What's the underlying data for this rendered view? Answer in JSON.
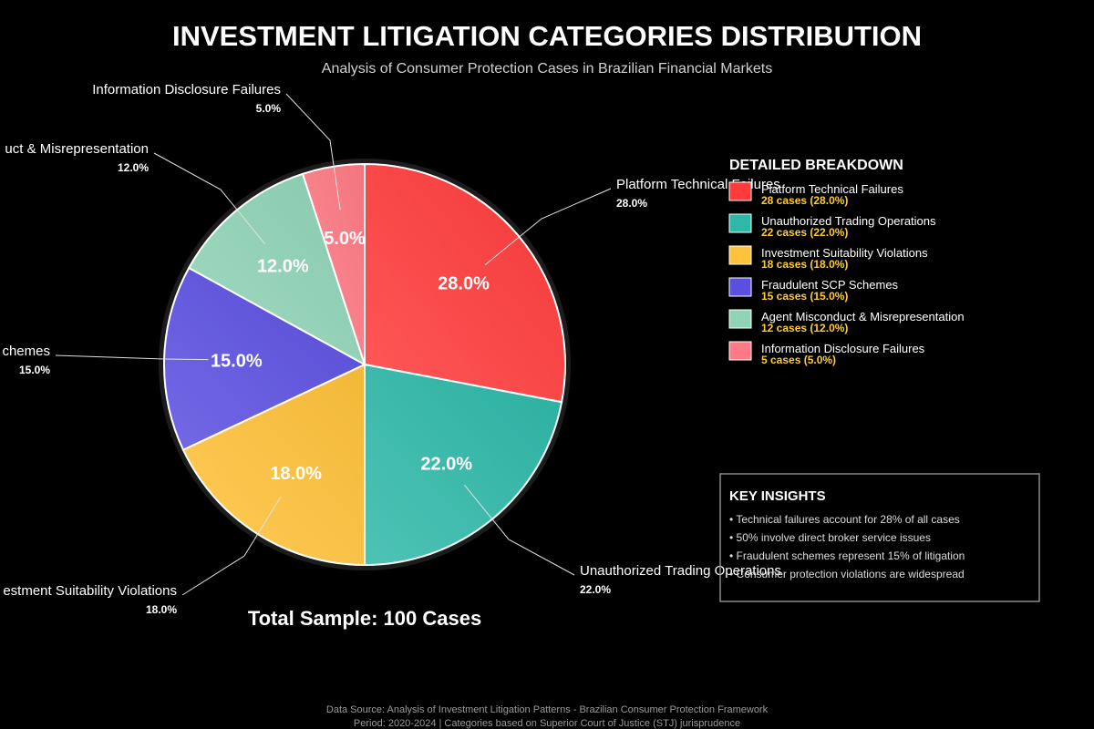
{
  "chart_data": {
    "type": "pie",
    "title": "INVESTMENT LITIGATION CATEGORIES DISTRIBUTION",
    "subtitle": "Analysis of Consumer Protection Cases in Brazilian Financial Markets",
    "categories": [
      "Platform Technical Failures",
      "Unauthorized Trading Operations",
      "Investment Suitability Violations",
      "Fraudulent SCP Schemes",
      "Agent Misconduct & Misrepresentation",
      "Information Disclosure Failures"
    ],
    "values": [
      28,
      22,
      18,
      15,
      12,
      5
    ],
    "percent_labels": [
      "28.0%",
      "22.0%",
      "18.0%",
      "15.0%",
      "12.0%",
      "5.0%"
    ],
    "outer_labels": [
      "Platform Technical Failures",
      "Unauthorized Trading Operations",
      "estment Suitability Violations",
      "chemes",
      "uct & Misrepresentation",
      "Information Disclosure Failures"
    ],
    "case_labels": [
      "28 cases (28.0%)",
      "22 cases (22.0%)",
      "18 cases (18.0%)",
      "15 cases (15.0%)",
      "12 cases (12.0%)",
      "5 cases (5.0%)"
    ],
    "colors": [
      "#ff3b3b",
      "#2db8a8",
      "#ffc23a",
      "#5a4fe0",
      "#8fd4b6",
      "#ff7a85"
    ],
    "legend_title": "DETAILED BREAKDOWN",
    "total_label": "Total Sample: 100 Cases"
  },
  "insights": {
    "title": "KEY INSIGHTS",
    "items": [
      "• Technical failures account for 28% of all cases",
      "• 50% involve direct broker service issues",
      "• Fraudulent schemes represent 15% of litigation",
      "• Consumer protection violations are widespread"
    ]
  },
  "footer": {
    "line1": "Data Source: Analysis of Investment Litigation Patterns - Brazilian Consumer Protection Framework",
    "line2": "Period: 2020-2024 | Categories based on Superior Court of Justice (STJ) jurisprudence"
  }
}
